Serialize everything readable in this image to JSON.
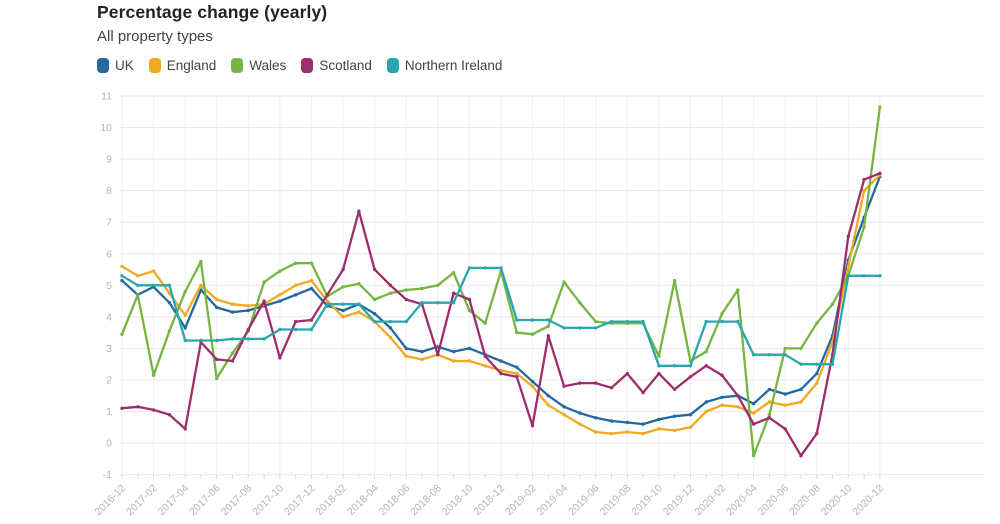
{
  "header": {
    "title": "Percentage change (yearly)",
    "subtitle": "All property types"
  },
  "legend": [
    {
      "label": "UK",
      "color": "#21699f"
    },
    {
      "label": "England",
      "color": "#f0a922"
    },
    {
      "label": "Wales",
      "color": "#76b543"
    },
    {
      "label": "Scotland",
      "color": "#9d2d6d"
    },
    {
      "label": "Northern Ireland",
      "color": "#2aa6ad"
    }
  ],
  "chart_data": {
    "type": "line",
    "title": "Percentage change (yearly)",
    "subtitle": "All property types",
    "xlabel": "",
    "ylabel": "",
    "ylim": [
      -1,
      11
    ],
    "yticks": [
      -1,
      0,
      1,
      2,
      3,
      4,
      5,
      6,
      7,
      8,
      9,
      10,
      11
    ],
    "grid": true,
    "legend_position": "top",
    "x_tick_labels": [
      "2016-12",
      "2017-02",
      "2017-04",
      "2017-06",
      "2017-08",
      "2017-10",
      "2017-12",
      "2018-02",
      "2018-04",
      "2018-06",
      "2018-08",
      "2018-10",
      "2018-12",
      "2019-02",
      "2019-04",
      "2019-06",
      "2019-08",
      "2019-10",
      "2019-12",
      "2020-02",
      "2020-04",
      "2020-06",
      "2020-08",
      "2020-10",
      "2020-12"
    ],
    "x": [
      "2016-12",
      "2017-01",
      "2017-02",
      "2017-03",
      "2017-04",
      "2017-05",
      "2017-06",
      "2017-07",
      "2017-08",
      "2017-09",
      "2017-10",
      "2017-11",
      "2017-12",
      "2018-01",
      "2018-02",
      "2018-03",
      "2018-04",
      "2018-05",
      "2018-06",
      "2018-07",
      "2018-08",
      "2018-09",
      "2018-10",
      "2018-11",
      "2018-12",
      "2019-01",
      "2019-02",
      "2019-03",
      "2019-04",
      "2019-05",
      "2019-06",
      "2019-07",
      "2019-08",
      "2019-09",
      "2019-10",
      "2019-11",
      "2019-12",
      "2020-01",
      "2020-02",
      "2020-03",
      "2020-04",
      "2020-05",
      "2020-06",
      "2020-07",
      "2020-08",
      "2020-09",
      "2020-10",
      "2020-11",
      "2020-12"
    ],
    "series": [
      {
        "name": "UK",
        "color": "#21699f",
        "values": [
          5.15,
          4.7,
          4.95,
          4.45,
          3.65,
          4.85,
          4.3,
          4.15,
          4.2,
          4.35,
          4.5,
          4.7,
          4.9,
          4.35,
          4.2,
          4.4,
          4.1,
          3.65,
          3.0,
          2.9,
          3.05,
          2.9,
          3.0,
          2.8,
          2.6,
          2.4,
          1.95,
          1.5,
          1.15,
          0.95,
          0.8,
          0.7,
          0.65,
          0.6,
          0.75,
          0.85,
          0.9,
          1.3,
          1.45,
          1.5,
          1.25,
          1.7,
          1.55,
          1.7,
          2.2,
          3.4,
          5.8,
          7.15,
          8.45
        ]
      },
      {
        "name": "England",
        "color": "#f0a922",
        "values": [
          5.6,
          5.3,
          5.45,
          4.75,
          4.05,
          5.0,
          4.55,
          4.4,
          4.35,
          4.4,
          4.7,
          5.0,
          5.15,
          4.5,
          4.0,
          4.15,
          3.85,
          3.35,
          2.75,
          2.65,
          2.8,
          2.6,
          2.6,
          2.45,
          2.3,
          2.2,
          1.8,
          1.2,
          0.9,
          0.6,
          0.35,
          0.3,
          0.35,
          0.3,
          0.45,
          0.4,
          0.5,
          1.0,
          1.2,
          1.15,
          0.95,
          1.3,
          1.2,
          1.3,
          1.9,
          3.2,
          5.6,
          8.0,
          8.5
        ]
      },
      {
        "name": "Wales",
        "color": "#76b543",
        "values": [
          3.45,
          4.7,
          2.15,
          3.55,
          4.8,
          5.75,
          2.05,
          2.85,
          3.55,
          5.1,
          5.45,
          5.7,
          5.7,
          4.65,
          4.95,
          5.05,
          4.55,
          4.75,
          4.85,
          4.9,
          5.0,
          5.4,
          4.2,
          3.8,
          5.45,
          3.5,
          3.45,
          3.7,
          5.1,
          4.45,
          3.85,
          3.8,
          3.8,
          3.8,
          2.75,
          5.15,
          2.6,
          2.9,
          4.1,
          4.85,
          -0.4,
          0.9,
          3.0,
          3.0,
          3.8,
          4.4,
          5.3,
          6.85,
          10.65
        ]
      },
      {
        "name": "Scotland",
        "color": "#9d2d6d",
        "values": [
          1.1,
          1.15,
          1.05,
          0.9,
          0.45,
          3.2,
          2.65,
          2.6,
          3.6,
          4.5,
          2.7,
          3.85,
          3.9,
          4.7,
          5.5,
          7.35,
          5.5,
          5.0,
          4.55,
          4.4,
          2.8,
          4.75,
          4.55,
          2.75,
          2.2,
          2.1,
          0.55,
          3.4,
          1.8,
          1.9,
          1.9,
          1.75,
          2.2,
          1.6,
          2.2,
          1.7,
          2.1,
          2.45,
          2.15,
          1.5,
          0.6,
          0.8,
          0.45,
          -0.4,
          0.3,
          2.8,
          6.55,
          8.35,
          8.55
        ]
      },
      {
        "name": "Northern Ireland",
        "color": "#2aa6ad",
        "values": [
          5.3,
          5.0,
          5.0,
          5.0,
          3.25,
          3.25,
          3.25,
          3.3,
          3.3,
          3.3,
          3.6,
          3.6,
          3.6,
          4.4,
          4.4,
          4.4,
          3.85,
          3.85,
          3.85,
          4.45,
          4.45,
          4.45,
          5.55,
          5.55,
          5.55,
          3.9,
          3.9,
          3.9,
          3.65,
          3.65,
          3.65,
          3.85,
          3.85,
          3.85,
          2.45,
          2.45,
          2.45,
          3.85,
          3.85,
          3.85,
          2.8,
          2.8,
          2.8,
          2.5,
          2.5,
          2.5,
          5.3,
          5.3,
          5.3
        ]
      }
    ]
  },
  "style": {
    "axis_text_color": "#b9b3b3",
    "gridline_color": "#e9e7e7",
    "minor_gridline_color": "#f2f0f0",
    "tick_color": "#ded9d9"
  }
}
